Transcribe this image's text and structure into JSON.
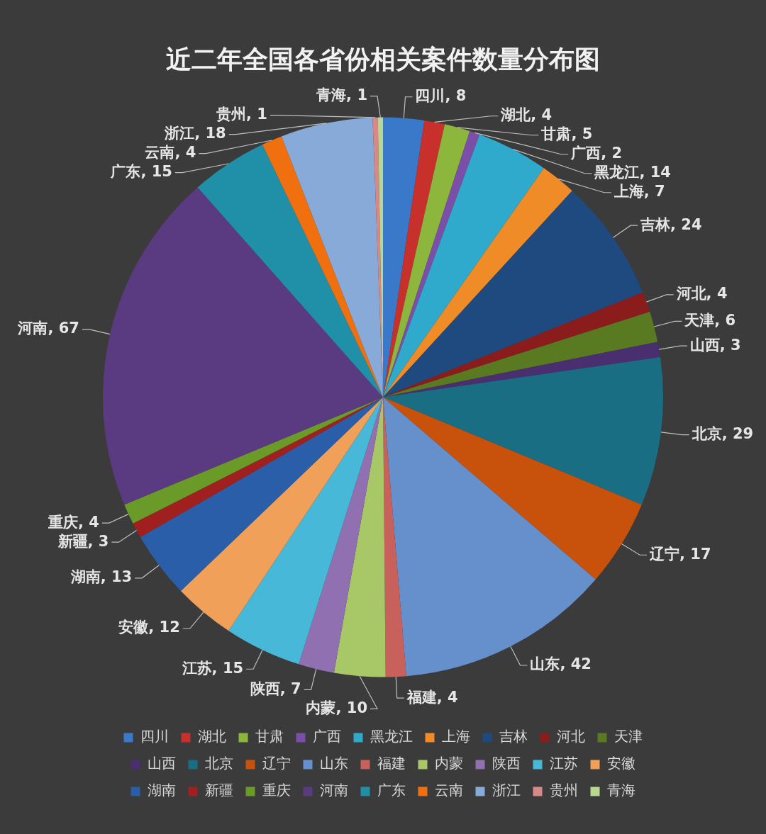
{
  "chart_data": {
    "type": "pie",
    "title": "近二年全国各省份相关案件数量分布图",
    "categories": [
      "四川",
      "湖北",
      "甘肃",
      "广西",
      "黑龙江",
      "上海",
      "吉林",
      "河北",
      "天津",
      "山西",
      "北京",
      "辽宁",
      "山东",
      "福建",
      "内蒙",
      "陕西",
      "江苏",
      "安徽",
      "湖南",
      "新疆",
      "重庆",
      "河南",
      "广东",
      "云南",
      "浙江",
      "贵州",
      "青海"
    ],
    "values": [
      8,
      4,
      5,
      2,
      14,
      7,
      24,
      4,
      6,
      3,
      29,
      17,
      42,
      4,
      10,
      7,
      15,
      12,
      13,
      3,
      4,
      67,
      15,
      4,
      18,
      1,
      1
    ],
    "colors": [
      "#3a78c9",
      "#c8302c",
      "#8db63c",
      "#7b4fa8",
      "#2fa9cc",
      "#f08c28",
      "#1f4a80",
      "#8b1c1c",
      "#5a7a22",
      "#4a2f70",
      "#1a6e84",
      "#c8520c",
      "#6690cc",
      "#c8605c",
      "#a8c868",
      "#9070b0",
      "#48b8d8",
      "#f0a058",
      "#2a5ea8",
      "#a02020",
      "#6a9a28",
      "#5a3a80",
      "#2090a8",
      "#f07010",
      "#88aad8",
      "#d88888",
      "#b8d890"
    ],
    "value_labels": [
      "四川, 8",
      "湖北, 4",
      "甘肃, 5",
      "广西, 2",
      "黑龙江, 14",
      "上海, 7",
      "吉林, 24",
      "河北, 4",
      "天津, 6",
      "山西, 3",
      "北京, 29",
      "辽宁, 17",
      "山东, 42",
      "福建, 4",
      "内蒙, 10",
      "陕西, 7",
      "江苏, 15",
      "安徽, 12",
      "湖南, 13",
      "新疆, 3",
      "重庆, 4",
      "河南, 67",
      "广东, 15",
      "云南, 4",
      "浙江, 18",
      "贵州, 1",
      "青海, 1"
    ],
    "legend": "bottom"
  }
}
